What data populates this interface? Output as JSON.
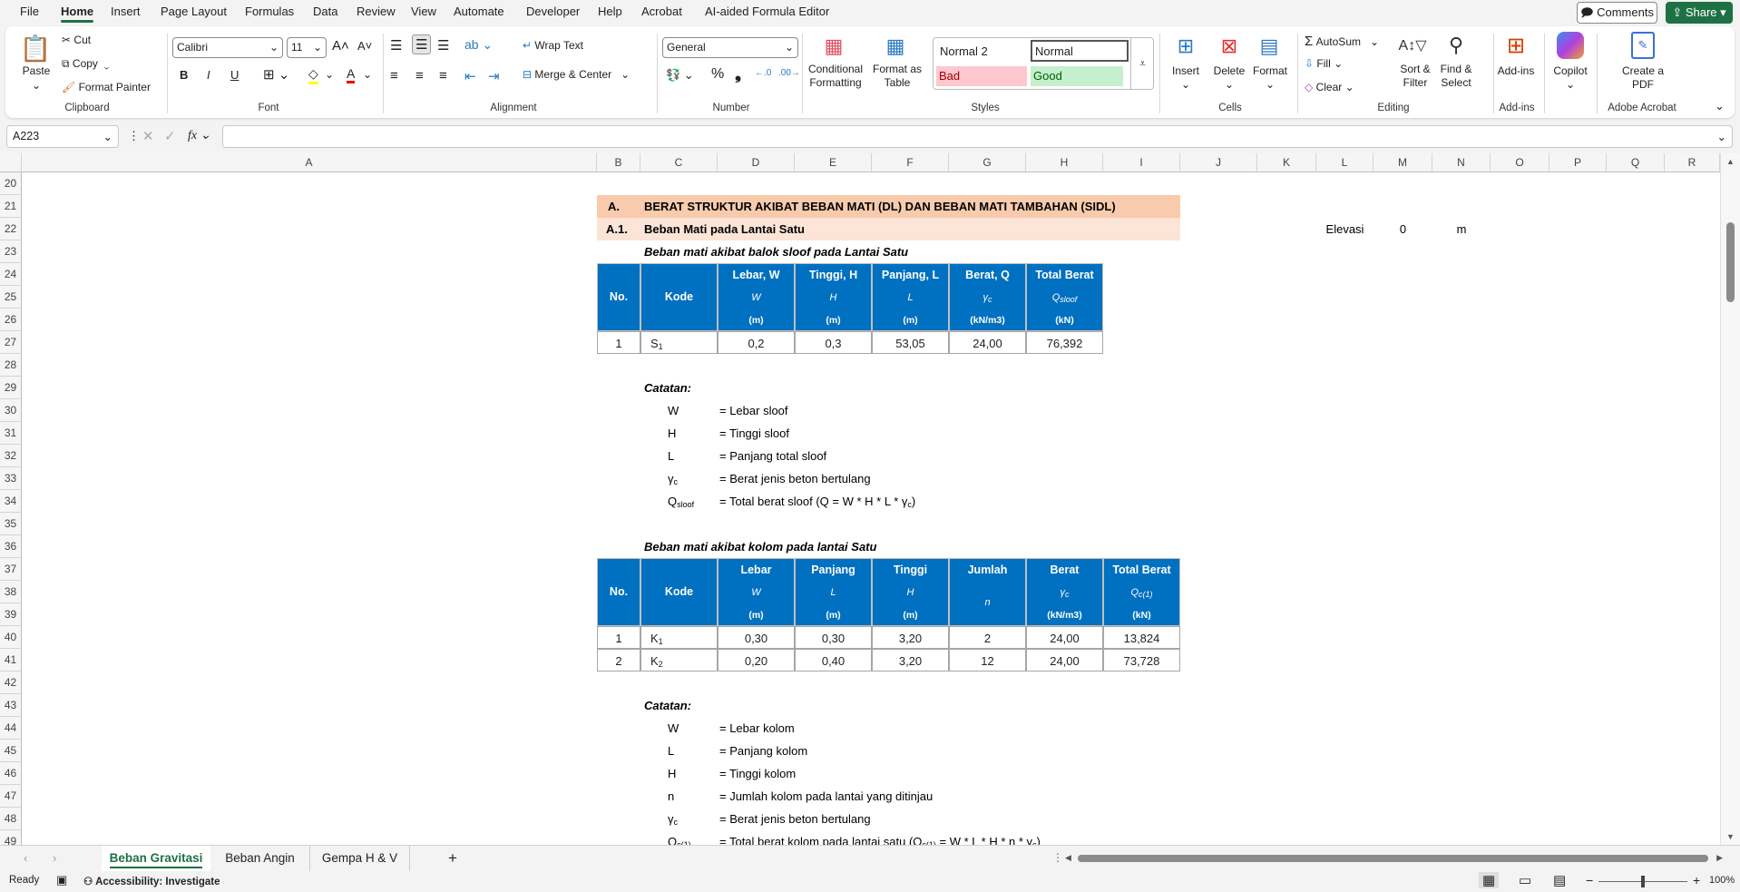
{
  "menu": {
    "tabs": [
      "File",
      "Home",
      "Insert",
      "Page Layout",
      "Formulas",
      "Data",
      "Review",
      "View",
      "Automate",
      "Developer",
      "Help",
      "Acrobat",
      "AI-aided Formula Editor"
    ],
    "active": "Home",
    "comments": "Comments",
    "share": "Share"
  },
  "ribbon": {
    "clipboard": {
      "paste": "Paste",
      "cut": "Cut",
      "copy": "Copy",
      "format_painter": "Format Painter",
      "label": "Clipboard"
    },
    "font": {
      "name": "Calibri",
      "size": "11",
      "bold": "B",
      "italic": "I",
      "underline": "U",
      "label": "Font"
    },
    "alignment": {
      "wrap": "Wrap Text",
      "merge": "Merge & Center",
      "label": "Alignment"
    },
    "number": {
      "format": "General",
      "label": "Number"
    },
    "styles": {
      "conditional": "Conditional Formatting",
      "format_table": "Format as Table",
      "normal2": "Normal 2",
      "normal": "Normal",
      "bad": "Bad",
      "good": "Good",
      "label": "Styles"
    },
    "cells": {
      "insert": "Insert",
      "delete": "Delete",
      "format": "Format",
      "label": "Cells"
    },
    "editing": {
      "autosum": "AutoSum",
      "fill": "Fill",
      "clear": "Clear",
      "sort": "Sort & Filter",
      "find": "Find & Select",
      "label": "Editing"
    },
    "addins": {
      "addins": "Add-ins",
      "label": "Add-ins"
    },
    "copilot": {
      "label": "Copilot"
    },
    "acrobat": {
      "create": "Create a PDF",
      "label": "Adobe Acrobat"
    }
  },
  "formula_bar": {
    "name_box": "A223",
    "formula": ""
  },
  "colors": {
    "accent": "#1E7145",
    "section_fill": "#F8CBAD",
    "subsection_fill": "#FCE4D6",
    "header_fill": "#0070C0",
    "bad_fill": "#FFC7CE",
    "good_fill": "#C6EFCE"
  },
  "sheet": {
    "columns": [
      "A",
      "B",
      "C",
      "D",
      "E",
      "F",
      "G",
      "H",
      "I",
      "J",
      "K",
      "L",
      "M",
      "N",
      "O",
      "P",
      "Q",
      "R"
    ],
    "rows": [
      "20",
      "21",
      "22",
      "23",
      "24",
      "25",
      "26",
      "27",
      "28",
      "29",
      "30",
      "31",
      "32",
      "33",
      "34",
      "35",
      "36",
      "37",
      "38",
      "39",
      "40",
      "41",
      "42",
      "43",
      "44",
      "45",
      "46",
      "47",
      "48",
      "49"
    ],
    "section": {
      "number": "A.",
      "title": "BERAT STRUKTUR AKIBAT BEBAN MATI (DL) DAN BEBAN MATI TAMBAHAN (SIDL)"
    },
    "subsection": {
      "number": "A.1.",
      "title": "Beban Mati pada Lantai Satu"
    },
    "elevation": {
      "label": "Elevasi",
      "value": "0",
      "unit": "m"
    },
    "tables": [
      {
        "caption": "Beban mati akibat balok sloof pada Lantai Satu",
        "headers": [
          {
            "title": "No."
          },
          {
            "title": "Kode"
          },
          {
            "title": "Lebar, W",
            "symbol": "W",
            "unit": "(m)"
          },
          {
            "title": "Tinggi, H",
            "symbol": "H",
            "unit": "(m)"
          },
          {
            "title": "Panjang, L",
            "symbol": "L",
            "unit": "(m)"
          },
          {
            "title": "Berat, Q",
            "symbol": {
              "t": "γ",
              "sub": "c"
            },
            "unit": "(kN/m3)"
          },
          {
            "title": "Total Berat",
            "symbol": {
              "t": "Q",
              "sub": "sloof"
            },
            "unit": "(kN)"
          }
        ],
        "rows": [
          [
            "1",
            {
              "t": "S",
              "sub": "1"
            },
            "0,2",
            "0,3",
            "53,05",
            "24,00",
            "76,392"
          ]
        ],
        "notes_title": "Catatan:",
        "notes": [
          {
            "symbol": "W",
            "desc": "= Lebar sloof"
          },
          {
            "symbol": "H",
            "desc": "= Tinggi sloof"
          },
          {
            "symbol": "L",
            "desc": "= Panjang total sloof"
          },
          {
            "symbol": {
              "t": "γ",
              "sub": "c"
            },
            "desc": "= Berat jenis beton bertulang"
          },
          {
            "symbol": {
              "t": "Q",
              "sub": "sloof"
            },
            "desc": [
              "= Total berat sloof (Q = W * H * L * γ",
              {
                "sub": "c"
              },
              ")"
            ]
          }
        ]
      },
      {
        "caption": "Beban mati akibat kolom pada lantai Satu",
        "headers": [
          {
            "title": "No."
          },
          {
            "title": "Kode"
          },
          {
            "title": "Lebar",
            "symbol": "W",
            "unit": "(m)"
          },
          {
            "title": "Panjang",
            "symbol": "L",
            "unit": "(m)"
          },
          {
            "title": "Tinggi",
            "symbol": "H",
            "unit": "(m)"
          },
          {
            "title": "Jumlah",
            "symbol": "n"
          },
          {
            "title": "Berat",
            "symbol": {
              "t": "γ",
              "sub": "c"
            },
            "unit": "(kN/m3)"
          },
          {
            "title": "Total Berat",
            "symbol": {
              "t": "Q",
              "sub": "c(1)"
            },
            "unit": "(kN)"
          }
        ],
        "rows": [
          [
            "1",
            {
              "t": "K",
              "sub": "1"
            },
            "0,30",
            "0,30",
            "3,20",
            "2",
            "24,00",
            "13,824"
          ],
          [
            "2",
            {
              "t": "K",
              "sub": "2"
            },
            "0,20",
            "0,40",
            "3,20",
            "12",
            "24,00",
            "73,728"
          ]
        ],
        "notes_title": "Catatan:",
        "notes": [
          {
            "symbol": "W",
            "desc": "= Lebar kolom"
          },
          {
            "symbol": "L",
            "desc": "= Panjang kolom"
          },
          {
            "symbol": "H",
            "desc": "= Tinggi kolom"
          },
          {
            "symbol": "n",
            "desc": "= Jumlah kolom pada lantai yang ditinjau"
          },
          {
            "symbol": {
              "t": "γ",
              "sub": "c"
            },
            "desc": "= Berat jenis beton bertulang"
          },
          {
            "symbol": {
              "t": "Q",
              "sub": "c(1)"
            },
            "desc": [
              "= Total berat kolom pada lantai satu (Q",
              {
                "sub": "c(1)"
              },
              " = W * L * H * n * γ",
              {
                "sub": "c"
              },
              ")"
            ]
          }
        ]
      }
    ]
  },
  "sheet_tabs": {
    "tabs": [
      "Beban Gravitasi",
      "Beban Angin",
      "Gempa H & V"
    ],
    "active": "Beban Gravitasi",
    "add": "+"
  },
  "status_bar": {
    "ready": "Ready",
    "accessibility": "Accessibility: Investigate",
    "zoom_out": "−",
    "zoom_in": "+",
    "zoom": "100%",
    "zoom_percent": 100
  }
}
